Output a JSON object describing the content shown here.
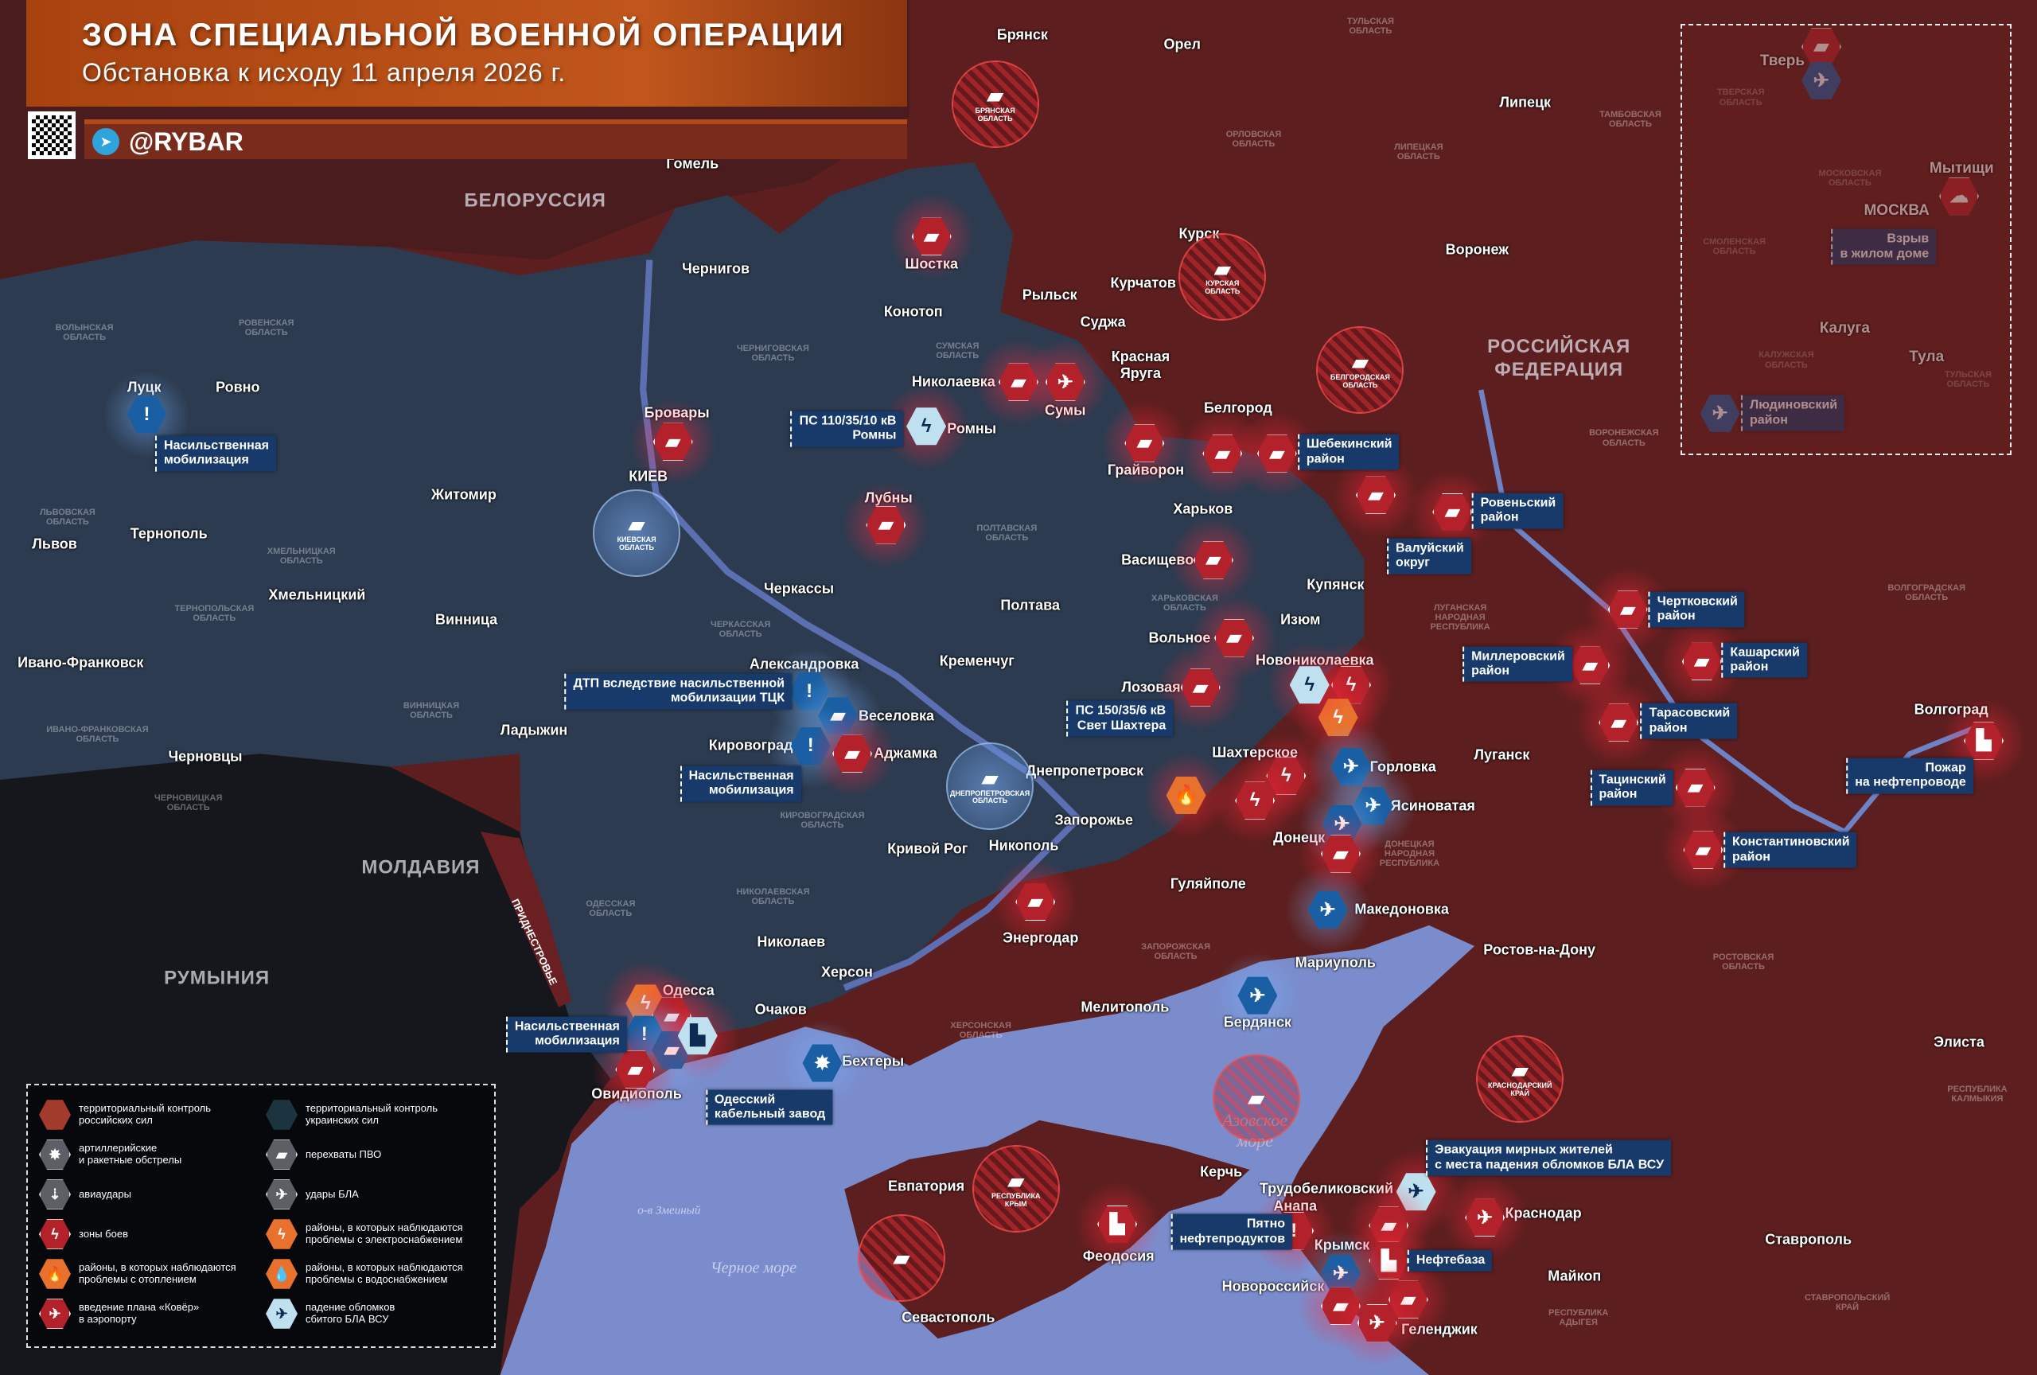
{
  "header": {
    "title": "ЗОНА СПЕЦИАЛЬНОЙ ВОЕННОЙ ОПЕРАЦИИ",
    "subtitle": "Обстановка к исходу 11 апреля 2026 г.",
    "telegram_handle": "@RYBAR",
    "telegram_icon": "telegram-icon"
  },
  "colors": {
    "russian_control": "#a33b2c",
    "ukrainian_control": "#1b3440",
    "sea": "#7a8ccc",
    "callout": "#173a6b",
    "marker_red": "#b3212a",
    "marker_blue": "#1a5fa3",
    "marker_orange": "#e8712e"
  },
  "countries": [
    "БЕЛОРУССИЯ",
    "МОЛДАВИЯ",
    "РУМЫНИЯ",
    "РОССИЙСКАЯ\nФЕДЕРАЦИЯ"
  ],
  "seas": [
    "Черное море",
    "Азовское\nморе",
    "о-в Змеиный"
  ],
  "cities": [
    "Брянск",
    "Орел",
    "Липецк",
    "Гомель",
    "Курск",
    "Курчатов",
    "Рыльск",
    "Суджа",
    "Красная\nЯруга",
    "Воронеж",
    "Шостка",
    "Чернигов",
    "Конотоп",
    "Николаевка",
    "Сумы",
    "Ромны",
    "Бровары",
    "КИЕВ",
    "Белгород",
    "Грайворон",
    "Лубны",
    "Харьков",
    "Житомир",
    "Луцк",
    "Ровно",
    "Львов",
    "Тернополь",
    "Хмельницкий",
    "Винница",
    "Ивано-Франковск",
    "Черновцы",
    "Ладыжин",
    "Черкассы",
    "Полтава",
    "Васищево",
    "Купянск",
    "Изюм",
    "Вольное",
    "Новониколаевка",
    "Лозовая",
    "Кременчуг",
    "Александровка",
    "Веселовка",
    "Кировоград",
    "Аджамка",
    "Шахтерское",
    "Горловка",
    "Днепропетровск",
    "Ясиноватая",
    "Запорожье",
    "Донецк",
    "Кривой Рог",
    "Никополь",
    "Гуляйполе",
    "Энергодар",
    "Македоновка",
    "Николаев",
    "Мариуполь",
    "Херсон",
    "Одесса",
    "Очаков",
    "Мелитополь",
    "Бердянск",
    "Ростов-на-Дону",
    "Луганск",
    "Волгоград",
    "Элиста",
    "Бехтеры",
    "Овидиополь",
    "Евпатория",
    "Керчь",
    "Трудобеликовский",
    "Анапа",
    "Краснодар",
    "Крымск",
    "Ставрополь",
    "Феодосия",
    "Майкоп",
    "Новороссийск",
    "Севастополь",
    "Геленджик"
  ],
  "regions": [
    "ТУЛЬСКАЯ\nОБЛАСТЬ",
    "ОРЛОВСКАЯ\nОБЛАСТЬ",
    "ЛИПЕЦКАЯ\nОБЛАСТЬ",
    "ТАМБОВСКАЯ\nОБЛАСТЬ",
    "ВОЛЫНСКАЯ\nОБЛАСТЬ",
    "РОВЕНСКАЯ\nОБЛАСТЬ",
    "ЧЕРНИГОВСКАЯ\nОБЛАСТЬ",
    "СУМСКАЯ\nОБЛАСТЬ",
    "ПОЛТАВСКАЯ\nОБЛАСТЬ",
    "ХАРЬКОВСКАЯ\nОБЛАСТЬ",
    "ЛУГАНСКАЯ\nНАРОДНАЯ\nРЕСПУБЛИКА",
    "ДОНЕЦКАЯ\nНАРОДНАЯ\nРЕСПУБЛИКА",
    "ЗАПОРОЖСКАЯ\nОБЛАСТЬ",
    "ХЕРСОНСКАЯ\nОБЛАСТЬ",
    "НИКОЛАЕВСКАЯ\nОБЛАСТЬ",
    "ОДЕССКАЯ\nОБЛАСТЬ",
    "КИРОВОГРАДСКАЯ\nОБЛАСТЬ",
    "ЧЕРКАССКАЯ\nОБЛАСТЬ",
    "ВИННИЦКАЯ\nОБЛАСТЬ",
    "ХМЕЛЬНИЦКАЯ\nОБЛАСТЬ",
    "ТЕРНОПОЛЬСКАЯ\nОБЛАСТЬ",
    "ЛЬВОВСКАЯ\nОБЛАСТЬ",
    "ЧЕРНОВИЦКАЯ\nОБЛАСТЬ",
    "ИВАНО-ФРАНКОВСКАЯ\nОБЛАСТЬ",
    "ВОРОНЕЖСКАЯ\nОБЛАСТЬ",
    "РОСТОВСКАЯ\nОБЛАСТЬ",
    "ВОЛГОГРАДСКАЯ\nОБЛАСТЬ",
    "РЕСПУБЛИКА\nКАЛМЫКИЯ",
    "СТАВРОПОЛЬСКИЙ\nКРАЙ",
    "РЕСПУБЛИКА\nАДЫГЕЯ",
    "ПРИДНЕСТРОВЬЕ"
  ],
  "circles": [
    {
      "label": "БРЯНСКАЯ\nОБЛАСТЬ",
      "icon": "air-defense-icon",
      "color": "red"
    },
    {
      "label": "КУРСКАЯ\nОБЛАСТЬ",
      "icon": "air-defense-icon",
      "color": "red"
    },
    {
      "label": "БЕЛГОРОДСКАЯ\nОБЛАСТЬ",
      "icon": "air-defense-icon",
      "color": "red"
    },
    {
      "label": "КИЕВСКАЯ\nОБЛАСТЬ",
      "icon": "air-defense-icon",
      "color": "blue"
    },
    {
      "label": "ДНЕПРОПЕТРОВСКАЯ\nОБЛАСТЬ",
      "icon": "air-defense-icon",
      "color": "blue"
    },
    {
      "label": "РЕСПУБЛИКА\nКРЫМ",
      "icon": "air-defense-icon",
      "color": "red"
    },
    {
      "label": "КРАСНОДАРСКИЙ\nКРАЙ",
      "icon": "air-defense-icon",
      "color": "red"
    },
    {
      "label": "",
      "icon": "air-defense-icon",
      "color": "red"
    },
    {
      "label": "",
      "icon": "air-defense-icon",
      "color": "red"
    }
  ],
  "callouts": [
    "Насильственная\nмобилизация",
    "ПС 110/35/10 кВ\nРомны",
    "Шебекинский\nрайон",
    "Ровеньский\nрайон",
    "Валуйский\nокруг",
    "Чертковский\nрайон",
    "Миллеровский\nрайон",
    "Кашарский\nрайон",
    "Тарасовский\nрайон",
    "Тацинский\nрайон",
    "Константиновский\nрайон",
    "ДТП вследствие насильственной\nмобилизации ТЦК",
    "Насильственная\nмобилизация",
    "ПС 150/35/6 кВ\nСвет Шахтера",
    "Насильственная\nмобилизация",
    "Одесский\nкабельный завод",
    "Пожар\nна нефтепроводе",
    "Эвакуация мирных жителей\nс места падения обломков БЛА ВСУ",
    "Пятно\nнефтепродуктов",
    "Нефтебаза"
  ],
  "markers": [
    {
      "icon": "air-defense-icon",
      "color": "red"
    },
    {
      "icon": "air-defense-icon",
      "color": "red"
    },
    {
      "icon": "drone-icon",
      "color": "red"
    },
    {
      "icon": "power-icon",
      "color": "light"
    },
    {
      "icon": "air-defense-icon",
      "color": "red"
    },
    {
      "icon": "air-defense-icon",
      "color": "red"
    },
    {
      "icon": "air-defense-icon",
      "color": "red"
    },
    {
      "icon": "air-defense-icon",
      "color": "red"
    },
    {
      "icon": "air-defense-icon",
      "color": "red"
    },
    {
      "icon": "air-defense-icon",
      "color": "red"
    },
    {
      "icon": "air-defense-icon",
      "color": "red"
    },
    {
      "icon": "air-defense-icon",
      "color": "red"
    },
    {
      "icon": "air-defense-icon",
      "color": "red"
    },
    {
      "icon": "air-defense-icon",
      "color": "red"
    },
    {
      "icon": "warning-icon",
      "color": "blue"
    },
    {
      "icon": "warning-icon",
      "color": "blue"
    },
    {
      "icon": "air-defense-icon",
      "color": "blue"
    },
    {
      "icon": "warning-icon",
      "color": "blue"
    },
    {
      "icon": "air-defense-icon",
      "color": "red"
    },
    {
      "icon": "air-defense-icon",
      "color": "red"
    },
    {
      "icon": "air-defense-icon",
      "color": "red"
    },
    {
      "icon": "air-defense-icon",
      "color": "red"
    },
    {
      "icon": "air-defense-icon",
      "color": "red"
    },
    {
      "icon": "air-defense-icon",
      "color": "red"
    },
    {
      "icon": "air-defense-icon",
      "color": "red"
    },
    {
      "icon": "fight-zone-icon",
      "color": "red"
    },
    {
      "icon": "power-icon",
      "color": "orange"
    },
    {
      "icon": "power-icon",
      "color": "light"
    },
    {
      "icon": "fire-icon",
      "color": "orange"
    },
    {
      "icon": "fight-zone-icon",
      "color": "red"
    },
    {
      "icon": "fight-zone-icon",
      "color": "red"
    },
    {
      "icon": "drone-icon",
      "color": "blue"
    },
    {
      "icon": "drone-icon",
      "color": "blue"
    },
    {
      "icon": "drone-icon",
      "color": "blue"
    },
    {
      "icon": "air-defense-icon",
      "color": "red"
    },
    {
      "icon": "drone-icon",
      "color": "blue"
    },
    {
      "icon": "air-defense-icon",
      "color": "red"
    },
    {
      "icon": "drone-icon",
      "color": "blue"
    },
    {
      "icon": "shelling-icon",
      "color": "blue"
    },
    {
      "icon": "power-icon",
      "color": "orange"
    },
    {
      "icon": "air-defense-icon",
      "color": "red"
    },
    {
      "icon": "warning-icon",
      "color": "blue"
    },
    {
      "icon": "air-defense-icon",
      "color": "blue"
    },
    {
      "icon": "factory-icon",
      "color": "light"
    },
    {
      "icon": "air-defense-icon",
      "color": "red"
    },
    {
      "icon": "factory-icon",
      "color": "red"
    },
    {
      "icon": "warning-icon",
      "color": "red"
    },
    {
      "icon": "drone-icon",
      "color": "light"
    },
    {
      "icon": "airplane-icon",
      "color": "red"
    },
    {
      "icon": "air-defense-icon",
      "color": "red"
    },
    {
      "icon": "factory-icon",
      "color": "red"
    },
    {
      "icon": "drone-icon",
      "color": "blue"
    },
    {
      "icon": "air-defense-icon",
      "color": "red"
    },
    {
      "icon": "air-defense-icon",
      "color": "red"
    },
    {
      "icon": "airplane-icon",
      "color": "red"
    },
    {
      "icon": "factory-icon",
      "color": "red"
    }
  ],
  "inset": {
    "cities": [
      "Тверь",
      "Мытищи",
      "МОСКВА",
      "Калуга",
      "Тула"
    ],
    "regions": [
      "ТВЕРСКАЯ\nОБЛАСТЬ",
      "МОСКОВСКАЯ\nОБЛАСТЬ",
      "СМОЛЕНСКАЯ\nОБЛАСТЬ",
      "КАЛУЖСКАЯ\nОБЛАСТЬ",
      "ТУЛЬСКАЯ\nОБЛАСТЬ"
    ],
    "callouts": [
      "Взрыв\nв жилом доме",
      "Людиновский\nрайон"
    ],
    "markers": [
      {
        "icon": "air-defense-icon",
        "color": "red"
      },
      {
        "icon": "drone-icon",
        "color": "blue"
      },
      {
        "icon": "explosion-icon",
        "color": "red"
      },
      {
        "icon": "drone-icon",
        "color": "blue"
      }
    ]
  },
  "legend": [
    {
      "icon": "russian-control-hex",
      "color": "ru",
      "text": "территориальный контроль\nроссийских сил"
    },
    {
      "icon": "ukrainian-control-hex",
      "color": "ua",
      "text": "территориальный контроль\nукраинских сил"
    },
    {
      "icon": "shelling-icon",
      "color": "gray",
      "text": "артиллерийские\nи ракетные обстрелы"
    },
    {
      "icon": "air-defense-icon",
      "color": "gray",
      "text": "перехваты ПВО"
    },
    {
      "icon": "airstrike-icon",
      "color": "gray",
      "text": "авиаудары"
    },
    {
      "icon": "drone-icon",
      "color": "gray",
      "text": "удары БЛА"
    },
    {
      "icon": "fight-zone-icon",
      "color": "red",
      "text": "зоны боев"
    },
    {
      "icon": "power-icon",
      "color": "orange",
      "text": "районы, в которых наблюдаются\nпроблемы с электроснабжением"
    },
    {
      "icon": "fire-icon",
      "color": "orange",
      "text": "районы, в которых наблюдаются\nпроблемы с отоплением"
    },
    {
      "icon": "water-icon",
      "color": "orange",
      "text": "районы, в которых наблюдаются\nпроблемы с водоснабжением"
    },
    {
      "icon": "airplane-icon",
      "color": "red",
      "text": "введение плана «Ковёр»\nв аэропорту"
    },
    {
      "icon": "drone-icon",
      "color": "light",
      "text": "падение обломков\nсбитого БЛА ВСУ"
    }
  ]
}
